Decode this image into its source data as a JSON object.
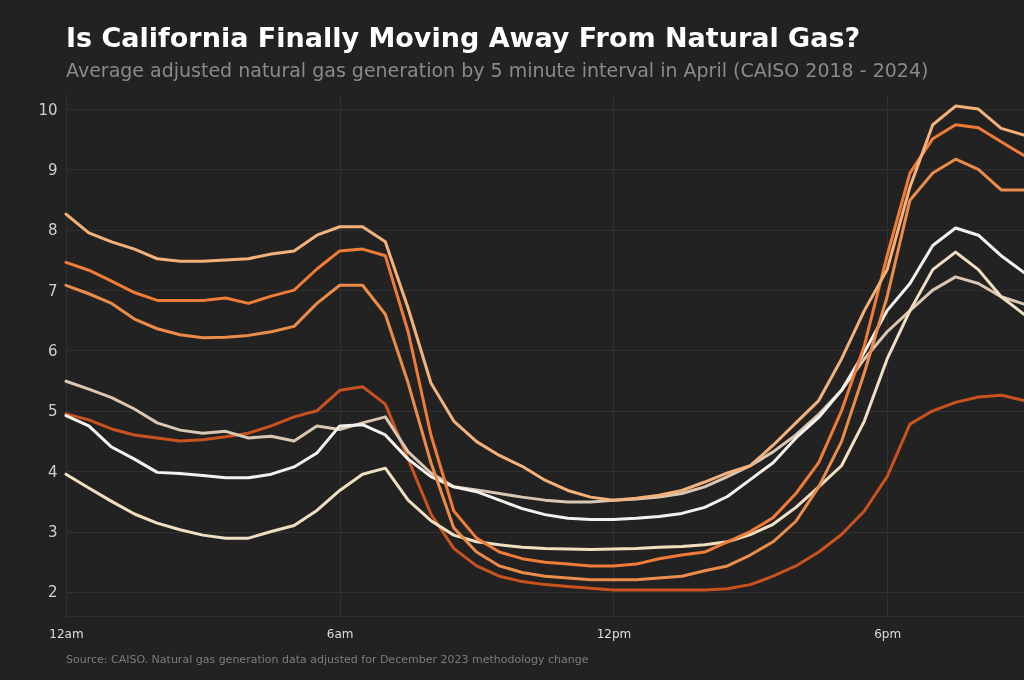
{
  "chart_data": {
    "type": "line",
    "title": "Is California Finally Moving Away From Natural Gas?",
    "subtitle": "Average adjusted natural gas generation by 5 minute interval in April (CAISO 2018 - 2024)",
    "annotations": [
      "Source: CAISO. Natural gas generation data adjusted for December 2023 methodology change"
    ],
    "categories": [
      "12am",
      null,
      null,
      null,
      null,
      null,
      null,
      null,
      null,
      null,
      null,
      null,
      "6am",
      null,
      null,
      null,
      null,
      null,
      null,
      null,
      null,
      null,
      null,
      null,
      "12pm",
      null,
      null,
      null,
      null,
      null,
      null,
      null,
      null,
      null,
      null,
      null,
      "6pm",
      null,
      null,
      null,
      null,
      null,
      null
    ],
    "series": [
      {
        "color": "#c9521f",
        "values": [
          4.95,
          4.85,
          4.7,
          4.6,
          4.55,
          4.5,
          4.52,
          4.57,
          4.63,
          4.75,
          4.9,
          5.0,
          5.34,
          5.4,
          5.11,
          4.2,
          3.29,
          2.72,
          2.43,
          2.26,
          2.17,
          2.12,
          2.09,
          2.06,
          2.03,
          2.03,
          2.03,
          2.03,
          2.03,
          2.05,
          2.12,
          2.26,
          2.43,
          2.66,
          2.95,
          3.34,
          3.91,
          4.78,
          5.0,
          5.14,
          5.23,
          5.26,
          5.17
        ]
      },
      {
        "color": "#d9c7b3",
        "values": [
          5.49,
          5.36,
          5.22,
          5.03,
          4.8,
          4.68,
          4.63,
          4.66,
          4.55,
          4.58,
          4.5,
          4.75,
          4.69,
          4.8,
          4.9,
          4.32,
          3.97,
          3.74,
          3.69,
          3.63,
          3.57,
          3.52,
          3.49,
          3.49,
          3.52,
          3.54,
          3.57,
          3.63,
          3.74,
          3.91,
          4.09,
          4.32,
          4.6,
          4.94,
          5.34,
          5.86,
          6.31,
          6.66,
          7.0,
          7.22,
          7.11,
          6.89,
          6.77
        ]
      },
      {
        "color": "#f1dfc2",
        "values": [
          3.95,
          3.72,
          3.5,
          3.29,
          3.14,
          3.03,
          2.94,
          2.89,
          2.89,
          3.0,
          3.1,
          3.35,
          3.68,
          3.95,
          4.05,
          3.52,
          3.18,
          2.94,
          2.83,
          2.78,
          2.74,
          2.72,
          2.71,
          2.7,
          2.71,
          2.72,
          2.74,
          2.75,
          2.78,
          2.83,
          2.95,
          3.12,
          3.4,
          3.74,
          4.09,
          4.83,
          5.86,
          6.66,
          7.34,
          7.63,
          7.34,
          6.89,
          6.6
        ]
      },
      {
        "color": "#f5f2ee",
        "values": [
          4.92,
          4.75,
          4.4,
          4.2,
          3.98,
          3.96,
          3.93,
          3.89,
          3.89,
          3.95,
          4.07,
          4.3,
          4.75,
          4.77,
          4.6,
          4.2,
          3.91,
          3.74,
          3.66,
          3.52,
          3.38,
          3.28,
          3.22,
          3.2,
          3.2,
          3.22,
          3.25,
          3.3,
          3.4,
          3.58,
          3.86,
          4.14,
          4.55,
          4.89,
          5.34,
          5.97,
          6.66,
          7.11,
          7.74,
          8.03,
          7.91,
          7.57,
          7.29
        ]
      },
      {
        "color": "#ec8c4a",
        "values": [
          7.08,
          6.94,
          6.78,
          6.52,
          6.36,
          6.26,
          6.21,
          6.22,
          6.25,
          6.31,
          6.4,
          6.78,
          7.08,
          7.08,
          6.6,
          5.46,
          4.14,
          3.06,
          2.66,
          2.43,
          2.32,
          2.26,
          2.23,
          2.2,
          2.2,
          2.2,
          2.23,
          2.26,
          2.35,
          2.43,
          2.61,
          2.83,
          3.17,
          3.74,
          4.49,
          5.63,
          6.89,
          8.49,
          8.94,
          9.17,
          9.0,
          8.66,
          8.66
        ]
      },
      {
        "color": "#f07c38",
        "values": [
          7.46,
          7.33,
          7.15,
          6.96,
          6.83,
          6.83,
          6.83,
          6.87,
          6.78,
          6.9,
          7.0,
          7.35,
          7.65,
          7.68,
          7.57,
          6.31,
          4.6,
          3.34,
          2.89,
          2.66,
          2.55,
          2.49,
          2.46,
          2.43,
          2.43,
          2.46,
          2.55,
          2.61,
          2.66,
          2.83,
          3.0,
          3.23,
          3.63,
          4.14,
          5.0,
          6.08,
          7.57,
          8.94,
          9.51,
          9.74,
          9.69,
          9.46,
          9.23
        ]
      },
      {
        "color": "#f4b27a",
        "values": [
          8.26,
          7.95,
          7.8,
          7.68,
          7.52,
          7.48,
          7.48,
          7.5,
          7.52,
          7.6,
          7.65,
          7.91,
          8.05,
          8.05,
          7.8,
          6.7,
          5.46,
          4.83,
          4.49,
          4.26,
          4.08,
          3.85,
          3.68,
          3.57,
          3.52,
          3.55,
          3.6,
          3.68,
          3.82,
          3.97,
          4.09,
          4.43,
          4.8,
          5.17,
          5.86,
          6.66,
          7.34,
          8.71,
          9.74,
          10.05,
          10.0,
          9.68,
          9.57
        ]
      }
    ],
    "ylim": [
      1.6,
      10.25
    ],
    "yticks": [
      2,
      3,
      4,
      5,
      6,
      7,
      8,
      9,
      10
    ],
    "grid": true
  }
}
